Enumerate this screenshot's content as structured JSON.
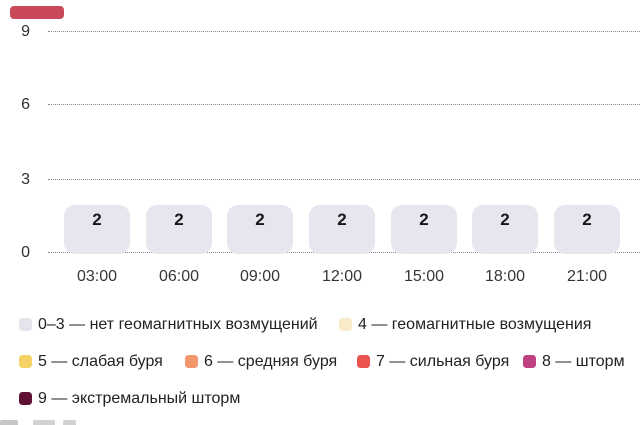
{
  "chart_data": {
    "type": "bar",
    "categories": [
      "03:00",
      "06:00",
      "09:00",
      "12:00",
      "15:00",
      "18:00",
      "21:00"
    ],
    "values": [
      2,
      2,
      2,
      2,
      2,
      2,
      2
    ],
    "yticks": [
      9,
      6,
      3,
      0
    ],
    "ylim": [
      0,
      9
    ],
    "title": "",
    "xlabel": "",
    "ylabel": "",
    "grid": "horizontal dotted lines at 0, 3, 6, 9",
    "legend_position": "bottom",
    "bar_color": "#e5e6ee",
    "value_label_color": "#17171a"
  },
  "legend": {
    "items": [
      {
        "label": "0–3 — нет геомагнитных возмущений",
        "color": "#e4e5ec"
      },
      {
        "label": "4 — геомагнитные возмущения",
        "color": "#f8ecc8"
      },
      {
        "label": "5 — слабая буря",
        "color": "#f6d163"
      },
      {
        "label": "6 — средняя буря",
        "color": "#f2966b"
      },
      {
        "label": "7 — сильная буря",
        "color": "#ea5350"
      },
      {
        "label": "8 — шторм",
        "color": "#c04180"
      },
      {
        "label": "9 — экстремальный шторм",
        "color": "#5e1133"
      }
    ]
  },
  "decor": {
    "partial_top_left_color": "#c9485a"
  }
}
